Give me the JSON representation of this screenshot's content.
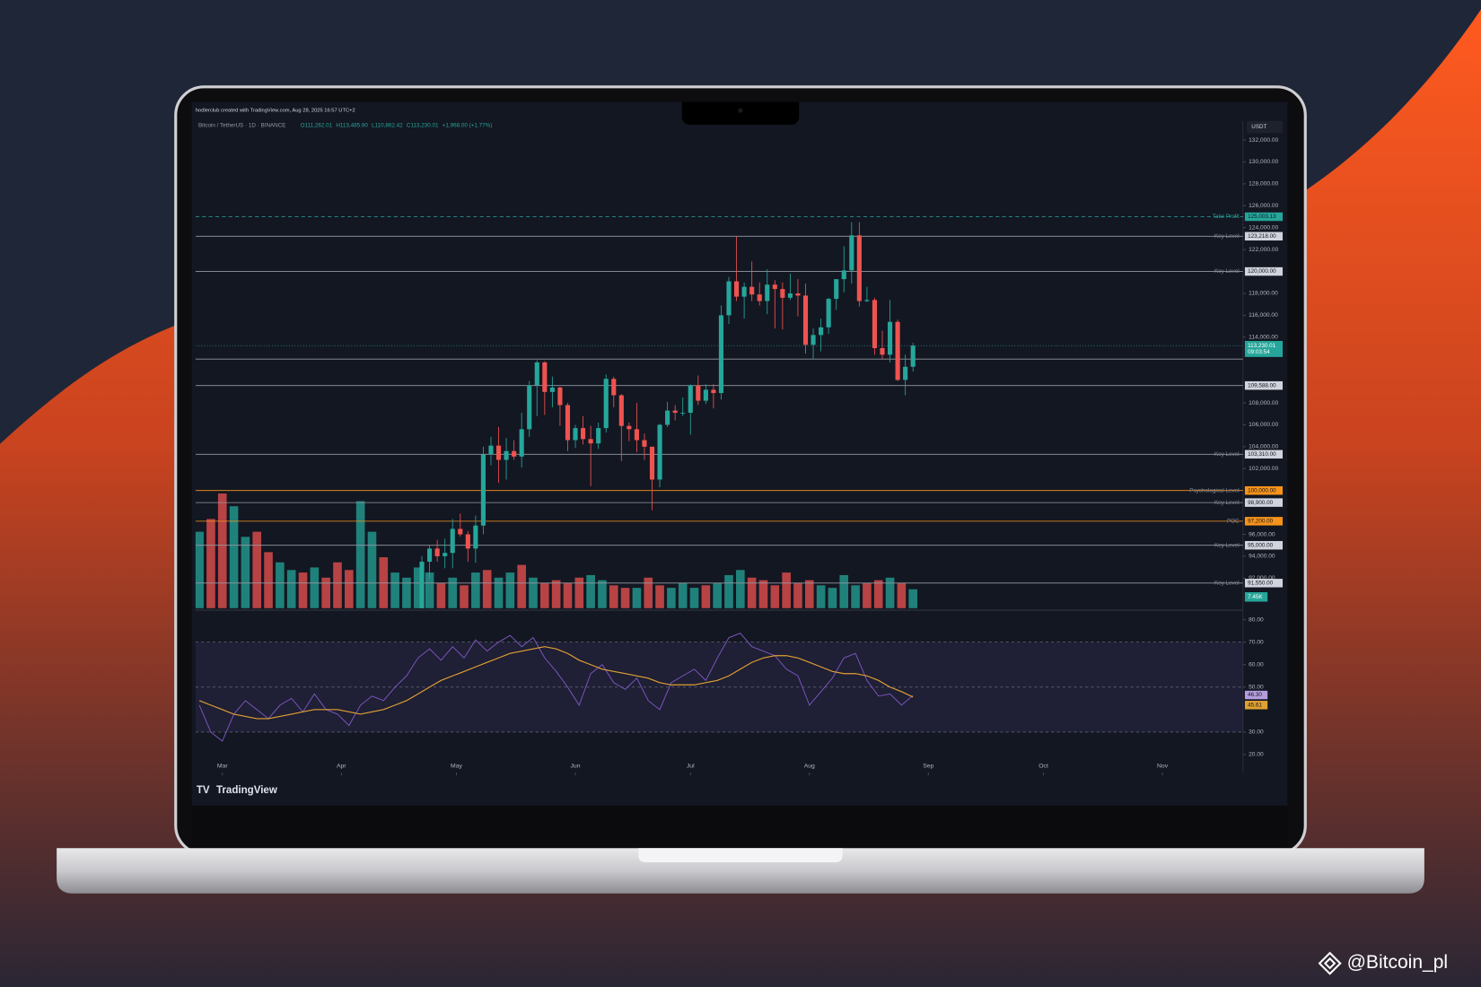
{
  "chart_data": {
    "type": "candlestick",
    "header_text": "hodlerclub created with TradingView.com, Aug 28, 2025 16:57 UTC+2",
    "symbol": "Bitcoin / TetherUS · 1D · BINANCE",
    "ohlc_header": [
      "O111,262.01",
      "H113,485.90",
      "L110,862.42",
      "C113,230.01",
      "+1,968.00 (+1.77%)"
    ],
    "currency": "USDT",
    "logo_text": "TradingView",
    "up_color": "#26a69a",
    "down_color": "#ef5350",
    "grid": false,
    "xlim": [
      -7,
      266
    ],
    "xticks": [
      {
        "value": 0,
        "label": "Mar"
      },
      {
        "value": 31,
        "label": "Apr"
      },
      {
        "value": 61,
        "label": "May"
      },
      {
        "value": 92,
        "label": "Jun"
      },
      {
        "value": 122,
        "label": "Jul"
      },
      {
        "value": 153,
        "label": "Aug"
      },
      {
        "value": 184,
        "label": "Sep"
      },
      {
        "value": 214,
        "label": "Oct"
      },
      {
        "value": 245,
        "label": "Nov"
      }
    ],
    "ylim": [
      89250,
      133750
    ],
    "yticks": [
      {
        "value": 132000,
        "label": "132,000.00"
      },
      {
        "value": 130000,
        "label": "130,000.00"
      },
      {
        "value": 128000,
        "label": "128,000.00"
      },
      {
        "value": 126000,
        "label": "126,000.00"
      },
      {
        "value": 124000,
        "label": "124,000.00"
      },
      {
        "value": 122000,
        "label": "122,000.00"
      },
      {
        "value": 118000,
        "label": "118,000.00"
      },
      {
        "value": 116000,
        "label": "116,000.00"
      },
      {
        "value": 114000,
        "label": "114,000.00"
      },
      {
        "value": 108000,
        "label": "108,000.00"
      },
      {
        "value": 106000,
        "label": "106,000.00"
      },
      {
        "value": 104000,
        "label": "104,000.00"
      },
      {
        "value": 102000,
        "label": "102,000.00"
      },
      {
        "value": 96000,
        "label": "96,000.00"
      },
      {
        "value": 94000,
        "label": "94,000.00"
      },
      {
        "value": 92000,
        "label": "92,000.00"
      }
    ],
    "candles": {
      "x": [
        52,
        54,
        56,
        58,
        60,
        62,
        64,
        66,
        68,
        70,
        72,
        74,
        76,
        78,
        80,
        82,
        84,
        86,
        88,
        90,
        92,
        94,
        96,
        98,
        100,
        102,
        104,
        106,
        108,
        110,
        112,
        114,
        116,
        118,
        120,
        122,
        124,
        126,
        128,
        130,
        132,
        134,
        136,
        138,
        140,
        142,
        144,
        146,
        148,
        150,
        152,
        154,
        156,
        158,
        160,
        162,
        164,
        166,
        168,
        170,
        172,
        174,
        176,
        178,
        180
      ],
      "ohlc": [
        [
          87500,
          94000,
          87000,
          93500
        ],
        [
          93500,
          95000,
          92000,
          94700
        ],
        [
          94700,
          95500,
          93500,
          94000
        ],
        [
          94000,
          95600,
          92900,
          94300
        ],
        [
          94300,
          97400,
          92900,
          96500
        ],
        [
          96500,
          97900,
          95800,
          96000
        ],
        [
          96000,
          96300,
          93500,
          94700
        ],
        [
          94700,
          97700,
          93400,
          96800
        ],
        [
          96800,
          104000,
          96000,
          103300
        ],
        [
          103300,
          104900,
          102300,
          104100
        ],
        [
          104100,
          105800,
          100700,
          102800
        ],
        [
          102800,
          104800,
          101000,
          103600
        ],
        [
          103600,
          104600,
          102800,
          103100
        ],
        [
          103100,
          107100,
          102100,
          105600
        ],
        [
          105600,
          110000,
          104900,
          109600
        ],
        [
          109600,
          111900,
          106800,
          111700
        ],
        [
          111700,
          111800,
          106900,
          109000
        ],
        [
          109000,
          110400,
          107600,
          109400
        ],
        [
          109400,
          109500,
          105900,
          107800
        ],
        [
          107800,
          108000,
          103600,
          104600
        ],
        [
          104600,
          106000,
          103900,
          105700
        ],
        [
          105700,
          106800,
          104200,
          104700
        ],
        [
          104700,
          105900,
          100400,
          104300
        ],
        [
          104300,
          106200,
          103800,
          105700
        ],
        [
          105700,
          110600,
          105300,
          110200
        ],
        [
          110200,
          110400,
          107600,
          108700
        ],
        [
          108700,
          108800,
          102700,
          105900
        ],
        [
          105900,
          106200,
          104500,
          105600
        ],
        [
          105600,
          108000,
          103500,
          104600
        ],
        [
          104600,
          105200,
          102800,
          104000
        ],
        [
          104000,
          104000,
          98200,
          101000
        ],
        [
          101000,
          106100,
          100300,
          106000
        ],
        [
          106000,
          108100,
          105800,
          107300
        ],
        [
          107300,
          107800,
          106400,
          107100
        ],
        [
          107100,
          108500,
          106800,
          107100
        ],
        [
          107100,
          109700,
          105100,
          109600
        ],
        [
          109600,
          110500,
          107800,
          108200
        ],
        [
          108200,
          109700,
          107900,
          109200
        ],
        [
          109200,
          109700,
          107500,
          108900
        ],
        [
          108900,
          116900,
          108300,
          116000
        ],
        [
          116000,
          119500,
          115200,
          119100
        ],
        [
          119100,
          123200,
          117300,
          117700
        ],
        [
          117700,
          119000,
          115700,
          118600
        ],
        [
          118600,
          120900,
          117300,
          117900
        ],
        [
          117900,
          119000,
          116900,
          117300
        ],
        [
          117300,
          120200,
          116100,
          118800
        ],
        [
          118800,
          119200,
          114800,
          118400
        ],
        [
          118400,
          119000,
          114700,
          117600
        ],
        [
          117600,
          119800,
          117400,
          118000
        ],
        [
          118000,
          119300,
          115900,
          117800
        ],
        [
          117800,
          118900,
          112500,
          113300
        ],
        [
          113300,
          114800,
          112000,
          114200
        ],
        [
          114200,
          115700,
          112700,
          114900
        ],
        [
          114900,
          117600,
          114300,
          117500
        ],
        [
          117500,
          119300,
          116500,
          119300
        ],
        [
          119300,
          122300,
          118100,
          120100
        ],
        [
          120100,
          124500,
          118900,
          123300
        ],
        [
          123300,
          124500,
          116800,
          117300
        ],
        [
          117300,
          118600,
          117200,
          117400
        ],
        [
          117400,
          117600,
          112400,
          113000
        ],
        [
          113000,
          114600,
          112000,
          112400
        ],
        [
          112400,
          117400,
          111700,
          115400
        ],
        [
          115400,
          115600,
          110000,
          110100
        ],
        [
          110100,
          112400,
          108700,
          111300
        ],
        [
          111300,
          113485.9,
          110862.42,
          113230.01
        ]
      ]
    },
    "last_price": {
      "value": 113230.01,
      "label": "113,230.01",
      "countdown": "09:03:54"
    },
    "levels": [
      {
        "label": "Take Profit",
        "value": 125003.13,
        "value_label": "125,003.13",
        "color": "#26a69a",
        "dashed": true
      },
      {
        "label": "Key Level",
        "value": 123218,
        "value_label": "123,218.00",
        "color": "#9598a1"
      },
      {
        "label": "Key Level",
        "value": 120000,
        "value_label": "120,000.00",
        "color": "#9598a1"
      },
      {
        "value": 112000,
        "color": "#9598a1"
      },
      {
        "value": 109588,
        "value_label": "109,588.00",
        "color": "#9598a1"
      },
      {
        "label": "Key Level",
        "value": 103310,
        "value_label": "103,310.00",
        "color": "#9598a1"
      },
      {
        "label": "Psychological Level",
        "value": 100000,
        "value_label": "100,000.00",
        "color": "#f7931a"
      },
      {
        "label": "Key Level",
        "value": 98900,
        "value_label": "98,900.00",
        "color": "#9598a1"
      },
      {
        "label": "POC",
        "value": 97200,
        "value_label": "97,200.00",
        "color": "#f7931a"
      },
      {
        "label": "Key Level",
        "value": 95000,
        "value_label": "95,000.00",
        "color": "#9598a1"
      },
      {
        "label": "Key Level",
        "value": 91550,
        "value_label": "91,550.00",
        "color": "#9598a1"
      }
    ],
    "volume": {
      "ylim": [
        0,
        50
      ],
      "last_label": "7.45K",
      "x": [
        -6,
        -3,
        0,
        3,
        6,
        9,
        12,
        15,
        18,
        21,
        24,
        27,
        30,
        33,
        36,
        39,
        42,
        45,
        48,
        51,
        54,
        57,
        60,
        63,
        66,
        69,
        72,
        75,
        78,
        81,
        84,
        87,
        90,
        93,
        96,
        99,
        102,
        105,
        108,
        111,
        114,
        117,
        120,
        123,
        126,
        129,
        132,
        135,
        138,
        141,
        144,
        147,
        150,
        153,
        156,
        159,
        162,
        165,
        168,
        171,
        174,
        177,
        180
      ],
      "values": [
        30,
        35,
        45,
        40,
        28,
        30,
        22,
        18,
        15,
        14,
        16,
        12,
        18,
        15,
        42,
        30,
        20,
        14,
        12,
        16,
        14,
        10,
        12,
        9,
        14,
        15,
        12,
        14,
        17,
        12,
        10,
        11,
        10,
        12,
        13,
        11,
        9,
        8,
        8,
        12,
        9,
        8,
        10,
        8,
        9,
        10,
        13,
        15,
        12,
        11,
        9,
        14,
        10,
        11,
        9,
        8,
        13,
        9,
        10,
        11,
        12,
        10,
        7.45
      ]
    },
    "rsi": {
      "ylim": [
        12,
        83.4
      ],
      "yticks": [
        {
          "value": 80,
          "label": "80.00"
        },
        {
          "value": 70,
          "label": "70.00"
        },
        {
          "value": 60,
          "label": "60.00"
        },
        {
          "value": 50,
          "label": "50.00"
        },
        {
          "value": 30,
          "label": "30.00"
        },
        {
          "value": 20,
          "label": "20.00"
        }
      ],
      "band": [
        30,
        70
      ],
      "mid": 50,
      "values": [
        42,
        30,
        26,
        38,
        44,
        40,
        36,
        42,
        45,
        39,
        47,
        40,
        38,
        33,
        42,
        46,
        44,
        50,
        55,
        63,
        67,
        62,
        68,
        63,
        71,
        66,
        70,
        73,
        68,
        72,
        63,
        57,
        50,
        42,
        56,
        60,
        52,
        49,
        54,
        44,
        40,
        52,
        55,
        58,
        53,
        63,
        72,
        74,
        68,
        66,
        64,
        58,
        55,
        42,
        48,
        54,
        63,
        65,
        53,
        46,
        47,
        42,
        46.3
      ],
      "ma": [
        44,
        42,
        40,
        38,
        37,
        36,
        36,
        37,
        38,
        39,
        40,
        40,
        40,
        39,
        38,
        39,
        40,
        42,
        44,
        47,
        50,
        53,
        55,
        57,
        59,
        61,
        63,
        65,
        66,
        67,
        68,
        67,
        65,
        62,
        60,
        58,
        57,
        56,
        55,
        54,
        52,
        51,
        51,
        51,
        52,
        53,
        55,
        58,
        61,
        63,
        64,
        64,
        63,
        61,
        59,
        57,
        56,
        56,
        55,
        53,
        50,
        48,
        45.61
      ],
      "last_label": "46.30",
      "ma_last_label": "45.61",
      "color": "#7e57c2",
      "ma_color": "#e0a032"
    }
  },
  "watermark": "@Bitcoin_pl"
}
